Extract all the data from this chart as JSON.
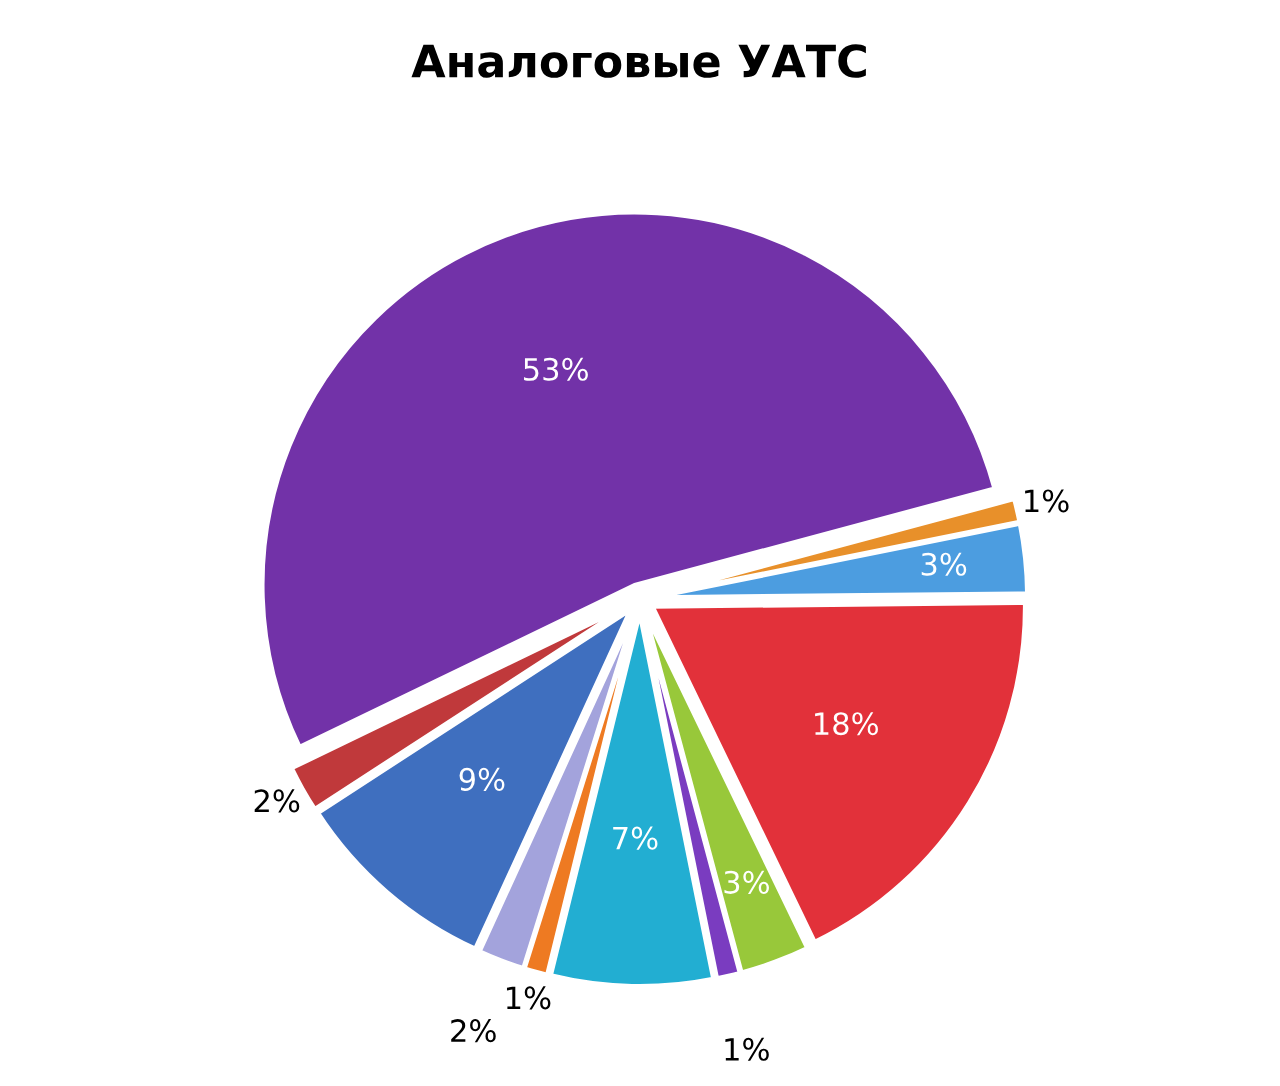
{
  "chart_data": {
    "type": "pie",
    "title": "Аналоговые УАТС",
    "categories": [
      null,
      null,
      null,
      null,
      null,
      null,
      null,
      null,
      null,
      null,
      null
    ],
    "values": [
      53,
      2,
      9,
      2,
      1,
      7,
      1,
      3,
      18,
      3,
      1
    ],
    "colors": [
      "#7232a8",
      "#c0393b",
      "#3f6fbf",
      "#a3a3dc",
      "#ee7a22",
      "#22aed2",
      "#7a3cc0",
      "#98c83a",
      "#e2313a",
      "#4c9de0",
      "#e8902a"
    ],
    "value_labels": [
      "53%",
      "2%",
      "9%",
      "2%",
      "1%",
      "7%",
      "1%",
      "3%",
      "18%",
      "3%",
      "1%"
    ]
  }
}
